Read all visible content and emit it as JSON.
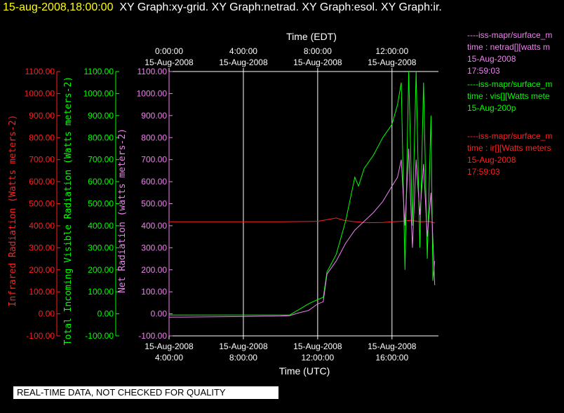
{
  "header": {
    "timestamp": "15-aug-2008,18:00:00",
    "graphs": "XY Graph:xy-grid.  XY Graph:netrad.  XY Graph:esol.  XY Graph:ir."
  },
  "notice": "REAL-TIME DATA, NOT CHECKED FOR QUALITY",
  "colors": {
    "ir": "#ff2020",
    "esol": "#00ff00",
    "netrad": "#ee82ee",
    "axis": "#ffffff",
    "grid": "#ffffff"
  },
  "legend": [
    {
      "series": "netrad",
      "line1": "----iss-mapr/surface_m",
      "line2": "time : netrad[][watts m",
      "line3": "15-Aug-2008",
      "line4": "17:59:03"
    },
    {
      "series": "esol",
      "line1": "----iss-mapr/surface_m",
      "line2": "time : vis[][Watts mete",
      "line3": "15-Aug-200p",
      "line4": ""
    },
    {
      "series": "ir",
      "line1": "----iss-mapr/surface_m",
      "line2": "time : ir[][Watts meters",
      "line3": "15-Aug-2008",
      "line4": "17:59:03"
    }
  ],
  "chart_data": {
    "type": "line",
    "top_axis": {
      "title": "Time (EDT)",
      "ticks": [
        {
          "t": 4,
          "date": "15-Aug-2008",
          "time": "0:00:00"
        },
        {
          "t": 8,
          "date": "15-Aug-2008",
          "time": "4:00:00"
        },
        {
          "t": 12,
          "date": "15-Aug-2008",
          "time": "8:00:00"
        },
        {
          "t": 16,
          "date": "15-Aug-2008",
          "time": "12:00:00"
        }
      ]
    },
    "bottom_axis": {
      "title": "Time (UTC)",
      "ticks": [
        {
          "t": 4,
          "date": "15-Aug-2008",
          "time": "4:00:00"
        },
        {
          "t": 8,
          "date": "15-Aug-2008",
          "time": "8:00:00"
        },
        {
          "t": 12,
          "date": "15-Aug-2008",
          "time": "12:00:00"
        },
        {
          "t": 16,
          "date": "15-Aug-2008",
          "time": "16:00:00"
        }
      ]
    },
    "xlim": [
      4,
      18.5
    ],
    "ylim": [
      -100,
      1100
    ],
    "yticks": [
      -100,
      0,
      100,
      200,
      300,
      400,
      500,
      600,
      700,
      800,
      900,
      1000,
      1100
    ],
    "y_axes": [
      {
        "series": "ir",
        "label": "Infrared Radiation (Watts meters-2)"
      },
      {
        "series": "esol",
        "label": "Total Incoming Visible Radiation (Watts meters-2)"
      },
      {
        "series": "netrad",
        "label": "Net Radiation (watts meters-2)"
      }
    ],
    "series": [
      {
        "key": "ir",
        "points": [
          [
            4,
            418
          ],
          [
            6,
            418
          ],
          [
            8,
            418
          ],
          [
            10,
            418
          ],
          [
            12,
            420
          ],
          [
            13,
            435
          ],
          [
            13.4,
            425
          ],
          [
            13.8,
            420
          ],
          [
            14.5,
            415
          ],
          [
            15,
            414
          ],
          [
            15.5,
            415
          ],
          [
            16,
            418
          ],
          [
            16.5,
            420
          ],
          [
            17,
            425
          ],
          [
            17.5,
            418
          ],
          [
            18,
            420
          ],
          [
            18.3,
            412
          ]
        ]
      },
      {
        "key": "esol",
        "points": [
          [
            4,
            -5
          ],
          [
            10.5,
            -5
          ],
          [
            11,
            20
          ],
          [
            11.5,
            45
          ],
          [
            12,
            65
          ],
          [
            12.3,
            75
          ],
          [
            12.5,
            190
          ],
          [
            13,
            270
          ],
          [
            13.5,
            420
          ],
          [
            14,
            620
          ],
          [
            14.2,
            580
          ],
          [
            14.5,
            660
          ],
          [
            15,
            720
          ],
          [
            15.5,
            800
          ],
          [
            16,
            860
          ],
          [
            16.3,
            950
          ],
          [
            16.5,
            1050
          ],
          [
            16.7,
            200
          ],
          [
            16.9,
            1100
          ],
          [
            17.1,
            400
          ],
          [
            17.3,
            1100
          ],
          [
            17.5,
            300
          ],
          [
            17.7,
            1050
          ],
          [
            17.9,
            250
          ],
          [
            18.1,
            900
          ],
          [
            18.2,
            150
          ],
          [
            18.3,
            240
          ]
        ]
      },
      {
        "key": "netrad",
        "points": [
          [
            4,
            -15
          ],
          [
            8,
            -12
          ],
          [
            10,
            -10
          ],
          [
            10.5,
            -8
          ],
          [
            11,
            5
          ],
          [
            11.5,
            15
          ],
          [
            12,
            45
          ],
          [
            12.3,
            55
          ],
          [
            12.5,
            180
          ],
          [
            13,
            240
          ],
          [
            13.5,
            320
          ],
          [
            14,
            380
          ],
          [
            14.5,
            420
          ],
          [
            15,
            460
          ],
          [
            15.5,
            510
          ],
          [
            16,
            580
          ],
          [
            16.3,
            620
          ],
          [
            16.5,
            700
          ],
          [
            16.7,
            400
          ],
          [
            16.9,
            750
          ],
          [
            17.1,
            300
          ],
          [
            17.3,
            700
          ],
          [
            17.5,
            450
          ],
          [
            17.7,
            680
          ],
          [
            17.9,
            350
          ],
          [
            18.1,
            550
          ],
          [
            18.3,
            130
          ]
        ]
      }
    ]
  }
}
